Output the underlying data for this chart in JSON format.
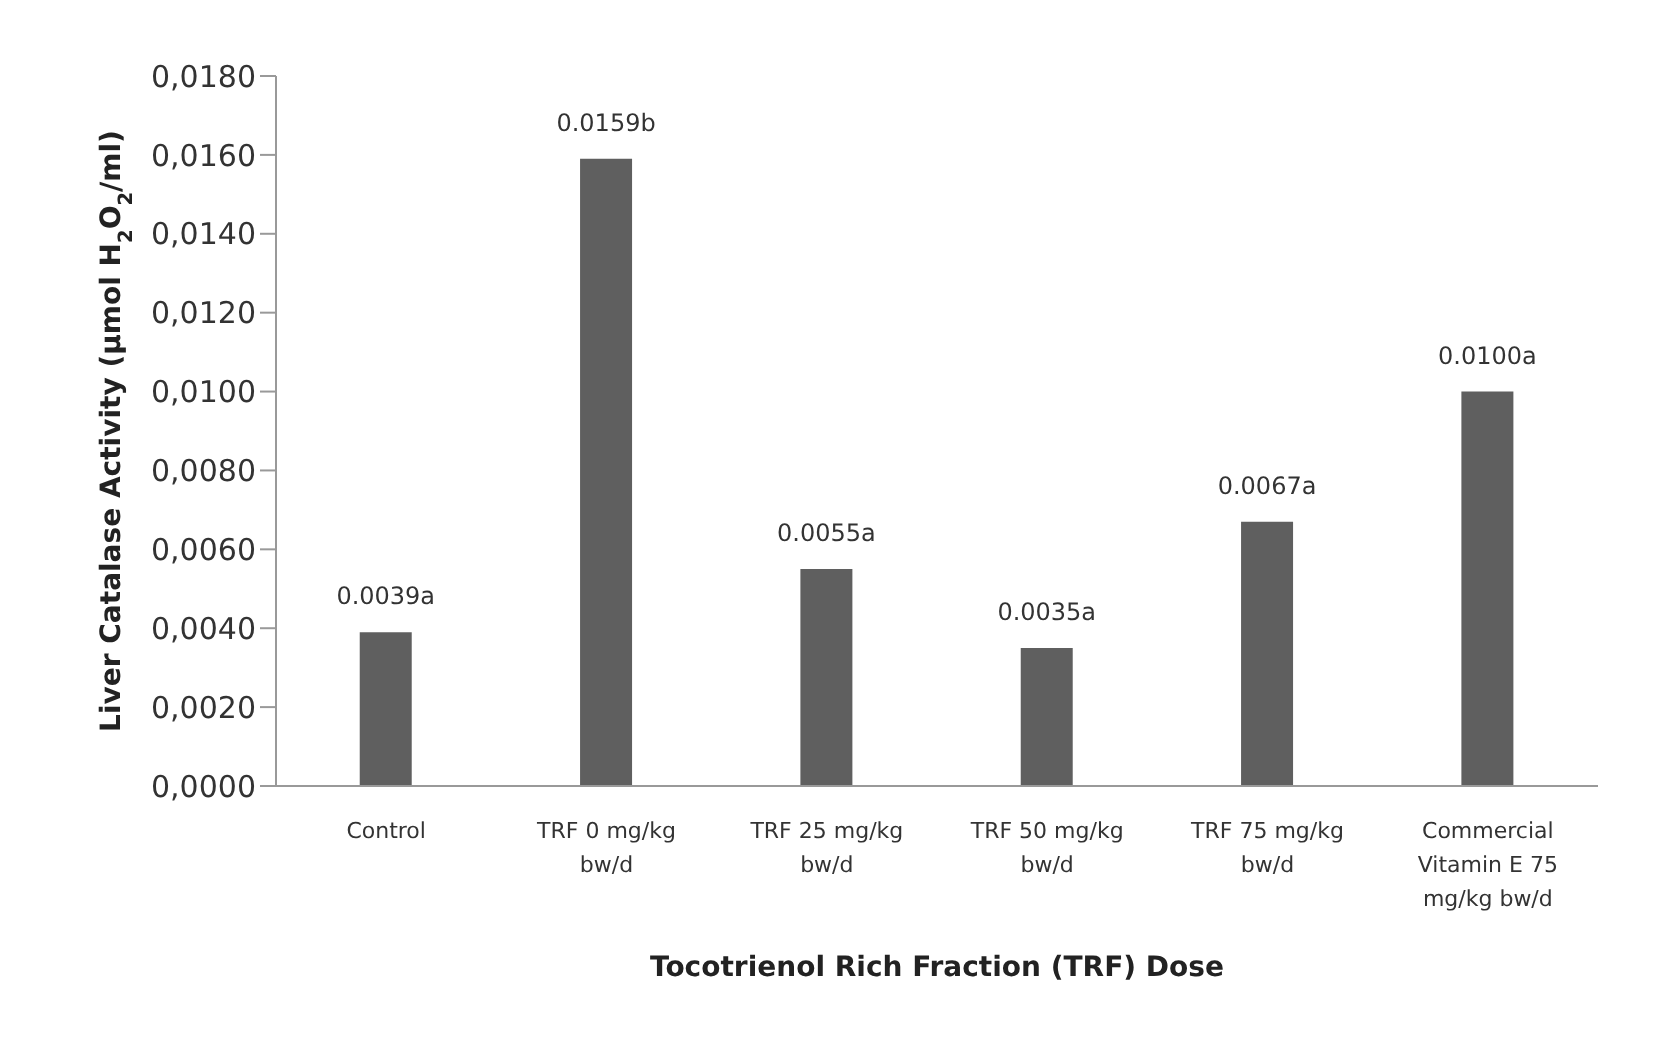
{
  "chart_data": {
    "type": "bar",
    "ylabel": "Liver Catalase Activity (μmol H$_{2}$O$_{2}$/ml)",
    "xlabel": "Tocotrienol Rich Fraction (TRF) Dose",
    "categories": [
      "Control",
      "TRF 0 mg/kg bw/d",
      "TRF 25 mg/kg bw/d",
      "TRF 50 mg/kg bw/d",
      "TRF 75 mg/kg bw/d",
      "Commercial Vitamin E 75 mg/kg bw/d"
    ],
    "values": [
      0.0039,
      0.0159,
      0.0055,
      0.0035,
      0.0067,
      0.01
    ],
    "value_labels": [
      "0.0039a",
      "0.0159b",
      "0.0055a",
      "0.0035a",
      "0.0067a",
      "0.0100a"
    ],
    "color": "#5f5f5f",
    "ylim": [
      0,
      0.018
    ],
    "yticks": [
      {
        "value": 0,
        "label": "0,0000"
      },
      {
        "value": 0.002,
        "label": "0,0020"
      },
      {
        "value": 0.004,
        "label": "0,0040"
      },
      {
        "value": 0.006,
        "label": "0,0060"
      },
      {
        "value": 0.008,
        "label": "0,0080"
      },
      {
        "value": 0.01,
        "label": "0,0100"
      },
      {
        "value": 0.012,
        "label": "0,0120"
      },
      {
        "value": 0.014,
        "label": "0,0140"
      },
      {
        "value": 0.016,
        "label": "0,0160"
      },
      {
        "value": 0.018,
        "label": "0,0180"
      }
    ],
    "grid": false
  }
}
